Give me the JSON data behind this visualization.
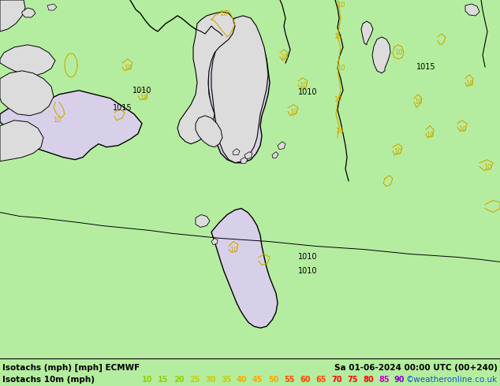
{
  "title_line1": "Isotachs (mph) [mph] ECMWF",
  "title_line2": "Isotachs 10m (mph)",
  "title_right": "Sa 01-06-2024 00:00 UTC (00+240)",
  "title_right2": "©weatheronline.co.uk",
  "map_bg": "#b5eda0",
  "land_color": "#dcdcdc",
  "wind_fill_color": "#d8d0e8",
  "contour_yellow": "#ccaa00",
  "contour_black": "#000000",
  "footer_bg": "#ffffff",
  "legend_values": [
    10,
    15,
    20,
    25,
    30,
    35,
    40,
    45,
    50,
    55,
    60,
    65,
    70,
    75,
    80,
    85,
    90
  ],
  "legend_colors": [
    "#90d000",
    "#90d000",
    "#90d000",
    "#cccc00",
    "#cccc00",
    "#cccc00",
    "#ffa500",
    "#ffa500",
    "#ffa500",
    "#ff4500",
    "#ff4500",
    "#ff4500",
    "#ff0000",
    "#ff0000",
    "#ff0000",
    "#cc00cc",
    "#8800cc"
  ]
}
